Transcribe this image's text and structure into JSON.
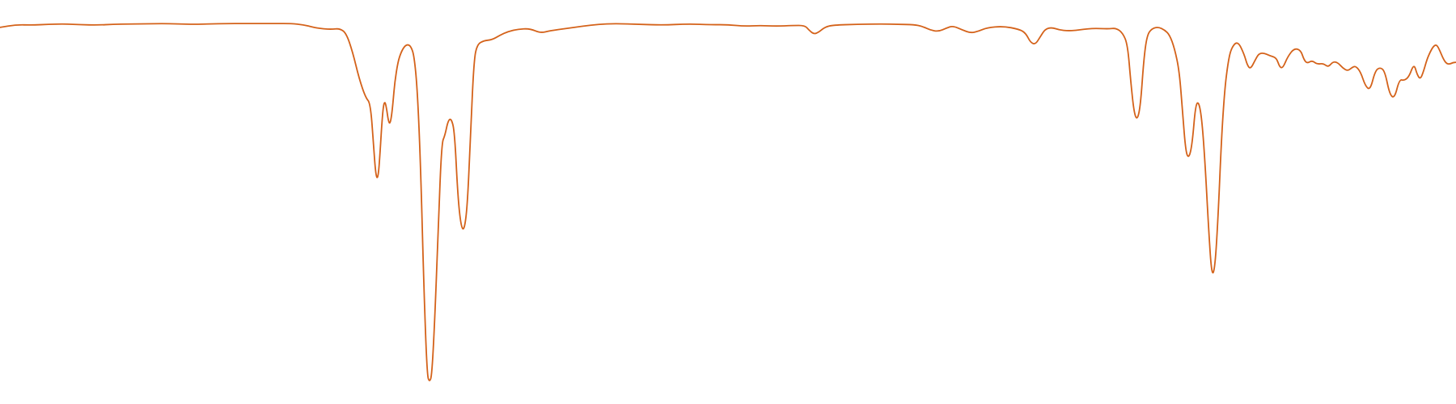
{
  "chart_data": {
    "type": "line",
    "title": "",
    "xlabel": "",
    "ylabel": "",
    "axes_visible": false,
    "grid": false,
    "legend": "none",
    "xlim": [
      0,
      1800
    ],
    "ylim": [
      0,
      1
    ],
    "series": [
      {
        "color": "#d4621a",
        "points": [
          [
            0,
            0.945
          ],
          [
            20,
            0.952
          ],
          [
            40,
            0.951
          ],
          [
            60,
            0.953
          ],
          [
            80,
            0.954
          ],
          [
            100,
            0.952
          ],
          [
            120,
            0.951
          ],
          [
            140,
            0.953
          ],
          [
            160,
            0.954
          ],
          [
            180,
            0.954
          ],
          [
            200,
            0.955
          ],
          [
            220,
            0.954
          ],
          [
            240,
            0.953
          ],
          [
            260,
            0.954
          ],
          [
            280,
            0.955
          ],
          [
            300,
            0.955
          ],
          [
            320,
            0.955
          ],
          [
            340,
            0.955
          ],
          [
            360,
            0.955
          ],
          [
            375,
            0.952
          ],
          [
            390,
            0.944
          ],
          [
            400,
            0.941
          ],
          [
            410,
            0.94
          ],
          [
            420,
            0.942
          ],
          [
            428,
            0.93
          ],
          [
            436,
            0.88
          ],
          [
            444,
            0.81
          ],
          [
            452,
            0.76
          ],
          [
            458,
            0.745
          ],
          [
            462,
            0.63
          ],
          [
            464,
            0.57
          ],
          [
            466,
            0.545
          ],
          [
            468,
            0.56
          ],
          [
            470,
            0.62
          ],
          [
            472,
            0.69
          ],
          [
            474,
            0.74
          ],
          [
            476,
            0.75
          ],
          [
            478,
            0.73
          ],
          [
            480,
            0.7
          ],
          [
            482,
            0.69
          ],
          [
            484,
            0.71
          ],
          [
            486,
            0.75
          ],
          [
            488,
            0.8
          ],
          [
            492,
            0.855
          ],
          [
            496,
            0.88
          ],
          [
            500,
            0.895
          ],
          [
            504,
            0.9
          ],
          [
            508,
            0.895
          ],
          [
            512,
            0.87
          ],
          [
            516,
            0.78
          ],
          [
            520,
            0.58
          ],
          [
            524,
            0.26
          ],
          [
            528,
            0.03
          ],
          [
            531,
            0.01
          ],
          [
            534,
            0.03
          ],
          [
            538,
            0.2
          ],
          [
            542,
            0.43
          ],
          [
            546,
            0.64
          ],
          [
            550,
            0.66
          ],
          [
            554,
            0.7
          ],
          [
            558,
            0.705
          ],
          [
            562,
            0.67
          ],
          [
            566,
            0.5
          ],
          [
            570,
            0.42
          ],
          [
            574,
            0.41
          ],
          [
            578,
            0.48
          ],
          [
            582,
            0.68
          ],
          [
            586,
            0.86
          ],
          [
            590,
            0.9
          ],
          [
            598,
            0.91
          ],
          [
            608,
            0.912
          ],
          [
            618,
            0.924
          ],
          [
            628,
            0.934
          ],
          [
            640,
            0.94
          ],
          [
            655,
            0.942
          ],
          [
            668,
            0.93
          ],
          [
            680,
            0.936
          ],
          [
            700,
            0.942
          ],
          [
            720,
            0.948
          ],
          [
            740,
            0.953
          ],
          [
            760,
            0.955
          ],
          [
            790,
            0.953
          ],
          [
            820,
            0.951
          ],
          [
            850,
            0.954
          ],
          [
            880,
            0.952
          ],
          [
            900,
            0.952
          ],
          [
            920,
            0.948
          ],
          [
            940,
            0.95
          ],
          [
            960,
            0.948
          ],
          [
            980,
            0.95
          ],
          [
            995,
            0.95
          ],
          [
            1000,
            0.938
          ],
          [
            1006,
            0.927
          ],
          [
            1012,
            0.932
          ],
          [
            1020,
            0.946
          ],
          [
            1030,
            0.951
          ],
          [
            1060,
            0.953
          ],
          [
            1090,
            0.954
          ],
          [
            1110,
            0.953
          ],
          [
            1130,
            0.952
          ],
          [
            1140,
            0.948
          ],
          [
            1150,
            0.938
          ],
          [
            1160,
            0.934
          ],
          [
            1170,
            0.943
          ],
          [
            1178,
            0.949
          ],
          [
            1190,
            0.938
          ],
          [
            1200,
            0.93
          ],
          [
            1210,
            0.935
          ],
          [
            1220,
            0.944
          ],
          [
            1240,
            0.948
          ],
          [
            1260,
            0.94
          ],
          [
            1268,
            0.93
          ],
          [
            1274,
            0.905
          ],
          [
            1280,
            0.9
          ],
          [
            1286,
            0.92
          ],
          [
            1292,
            0.94
          ],
          [
            1300,
            0.945
          ],
          [
            1310,
            0.938
          ],
          [
            1320,
            0.936
          ],
          [
            1330,
            0.937
          ],
          [
            1340,
            0.94
          ],
          [
            1350,
            0.942
          ],
          [
            1360,
            0.942
          ],
          [
            1370,
            0.941
          ],
          [
            1380,
            0.943
          ],
          [
            1388,
            0.93
          ],
          [
            1394,
            0.9
          ],
          [
            1398,
            0.8
          ],
          [
            1402,
            0.72
          ],
          [
            1406,
            0.7
          ],
          [
            1410,
            0.74
          ],
          [
            1414,
            0.86
          ],
          [
            1418,
            0.924
          ],
          [
            1424,
            0.942
          ],
          [
            1432,
            0.946
          ],
          [
            1440,
            0.938
          ],
          [
            1446,
            0.925
          ],
          [
            1452,
            0.89
          ],
          [
            1458,
            0.83
          ],
          [
            1462,
            0.72
          ],
          [
            1466,
            0.615
          ],
          [
            1470,
            0.6
          ],
          [
            1474,
            0.64
          ],
          [
            1478,
            0.74
          ],
          [
            1482,
            0.75
          ],
          [
            1486,
            0.7
          ],
          [
            1490,
            0.58
          ],
          [
            1494,
            0.42
          ],
          [
            1498,
            0.29
          ],
          [
            1502,
            0.31
          ],
          [
            1506,
            0.45
          ],
          [
            1510,
            0.65
          ],
          [
            1514,
            0.78
          ],
          [
            1518,
            0.85
          ],
          [
            1522,
            0.89
          ],
          [
            1530,
            0.91
          ],
          [
            1538,
            0.875
          ],
          [
            1542,
            0.845
          ],
          [
            1546,
            0.835
          ],
          [
            1552,
            0.86
          ],
          [
            1556,
            0.875
          ],
          [
            1562,
            0.878
          ],
          [
            1570,
            0.87
          ],
          [
            1578,
            0.865
          ],
          [
            1582,
            0.84
          ],
          [
            1586,
            0.838
          ],
          [
            1592,
            0.868
          ],
          [
            1600,
            0.89
          ],
          [
            1608,
            0.885
          ],
          [
            1612,
            0.86
          ],
          [
            1616,
            0.85
          ],
          [
            1622,
            0.858
          ],
          [
            1628,
            0.848
          ],
          [
            1636,
            0.85
          ],
          [
            1642,
            0.84
          ],
          [
            1648,
            0.855
          ],
          [
            1654,
            0.852
          ],
          [
            1660,
            0.838
          ],
          [
            1666,
            0.83
          ],
          [
            1672,
            0.84
          ],
          [
            1676,
            0.843
          ],
          [
            1682,
            0.828
          ],
          [
            1688,
            0.79
          ],
          [
            1694,
            0.78
          ],
          [
            1700,
            0.83
          ],
          [
            1706,
            0.84
          ],
          [
            1712,
            0.83
          ],
          [
            1718,
            0.768
          ],
          [
            1724,
            0.758
          ],
          [
            1730,
            0.808
          ],
          [
            1736,
            0.805
          ],
          [
            1742,
            0.815
          ],
          [
            1748,
            0.85
          ],
          [
            1752,
            0.82
          ],
          [
            1756,
            0.808
          ],
          [
            1760,
            0.83
          ],
          [
            1764,
            0.86
          ],
          [
            1768,
            0.88
          ],
          [
            1772,
            0.895
          ],
          [
            1776,
            0.9
          ],
          [
            1780,
            0.884
          ],
          [
            1784,
            0.863
          ],
          [
            1788,
            0.85
          ],
          [
            1792,
            0.848
          ],
          [
            1796,
            0.852
          ],
          [
            1800,
            0.853
          ]
        ]
      }
    ]
  }
}
